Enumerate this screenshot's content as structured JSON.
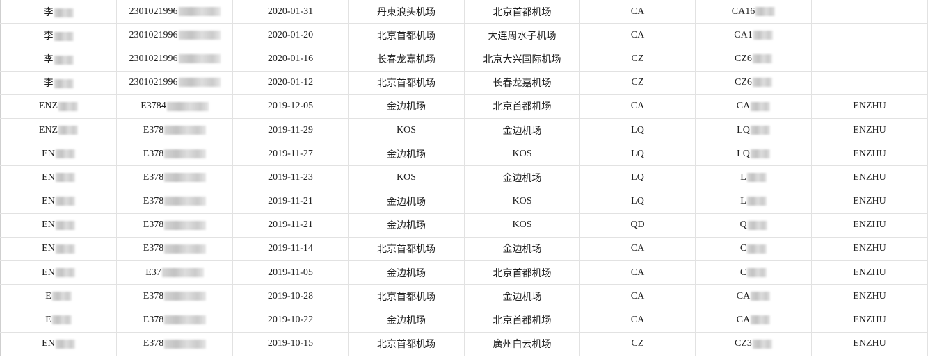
{
  "sheet": {
    "rows": [
      {
        "name": "李",
        "id": "2301021996",
        "date": "2020-01-31",
        "from": "丹東浪头机场",
        "to": "北京首都机场",
        "airline": "CA",
        "flight": "CA16",
        "extra": ""
      },
      {
        "name": "李",
        "id": "2301021996",
        "date": "2020-01-20",
        "from": "北京首都机场",
        "to": "大连周水子机场",
        "airline": "CA",
        "flight": "CA1",
        "extra": ""
      },
      {
        "name": "李",
        "id": "2301021996",
        "date": "2020-01-16",
        "from": "长春龙嘉机场",
        "to": "北京大兴国际机场",
        "airline": "CZ",
        "flight": "CZ6",
        "extra": ""
      },
      {
        "name": "李",
        "id": "2301021996",
        "date": "2020-01-12",
        "from": "北京首都机场",
        "to": "长春龙嘉机场",
        "airline": "CZ",
        "flight": "CZ6",
        "extra": ""
      },
      {
        "name": "ENZ",
        "id": "E3784",
        "date": "2019-12-05",
        "from": "金边机场",
        "to": "北京首都机场",
        "airline": "CA",
        "flight": "CA",
        "extra": "ENZHU"
      },
      {
        "name": "ENZ",
        "id": "E378",
        "date": "2019-11-29",
        "from": "KOS",
        "to": "金边机场",
        "airline": "LQ",
        "flight": "LQ",
        "extra": "ENZHU"
      },
      {
        "name": "EN",
        "id": "E378",
        "date": "2019-11-27",
        "from": "金边机场",
        "to": "KOS",
        "airline": "LQ",
        "flight": "LQ",
        "extra": "ENZHU"
      },
      {
        "name": "EN",
        "id": "E378",
        "date": "2019-11-23",
        "from": "KOS",
        "to": "金边机场",
        "airline": "LQ",
        "flight": "L",
        "extra": "ENZHU"
      },
      {
        "name": "EN",
        "id": "E378",
        "date": "2019-11-21",
        "from": "金边机场",
        "to": "KOS",
        "airline": "LQ",
        "flight": "L",
        "extra": "ENZHU"
      },
      {
        "name": "EN",
        "id": "E378",
        "date": "2019-11-21",
        "from": "金边机场",
        "to": "KOS",
        "airline": "QD",
        "flight": "Q",
        "extra": "ENZHU"
      },
      {
        "name": "EN",
        "id": "E378",
        "date": "2019-11-14",
        "from": "北京首都机场",
        "to": "金边机场",
        "airline": "CA",
        "flight": "C",
        "extra": "ENZHU"
      },
      {
        "name": "EN",
        "id": "E37",
        "date": "2019-11-05",
        "from": "金边机场",
        "to": "北京首都机场",
        "airline": "CA",
        "flight": "C",
        "extra": "ENZHU"
      },
      {
        "name": "E",
        "id": "E378",
        "date": "2019-10-28",
        "from": "北京首都机场",
        "to": "金边机场",
        "airline": "CA",
        "flight": "CA",
        "extra": "ENZHU"
      },
      {
        "name": "E",
        "id": "E378",
        "date": "2019-10-22",
        "from": "金边机场",
        "to": "北京首都机场",
        "airline": "CA",
        "flight": "CA",
        "extra": "ENZHU"
      },
      {
        "name": "EN",
        "id": "E378",
        "date": "2019-10-15",
        "from": "北京首都机场",
        "to": "廣州白云机场",
        "airline": "CZ",
        "flight": "CZ3",
        "extra": "ENZHU"
      }
    ]
  }
}
